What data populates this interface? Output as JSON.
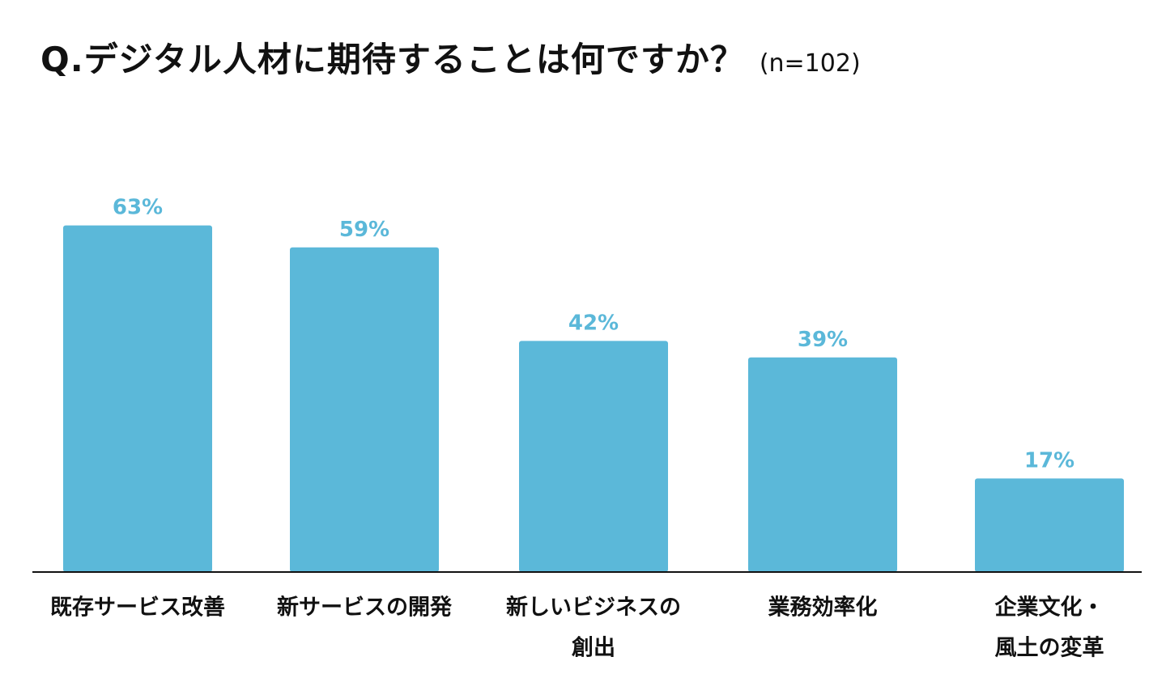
{
  "chart_data": {
    "type": "bar",
    "title": "Q.デジタル人材に期待することは何ですか？",
    "subtitle": "(n=102)",
    "categories": [
      [
        "既存サービス改善"
      ],
      [
        "新サービスの開発"
      ],
      [
        "新しいビジネスの",
        "創出"
      ],
      [
        "業務効率化"
      ],
      [
        "企業文化・",
        "風土の変革"
      ]
    ],
    "values": [
      63,
      59,
      42,
      39,
      17
    ],
    "value_labels": [
      "63%",
      "59%",
      "42%",
      "39%",
      "17%"
    ],
    "ylim": [
      0,
      100
    ],
    "grid": false,
    "legend": "none"
  },
  "colors": {
    "bar": "#5bb8d9",
    "axis": "#111111",
    "value_label": "#5bb8d9",
    "text": "#111111"
  }
}
